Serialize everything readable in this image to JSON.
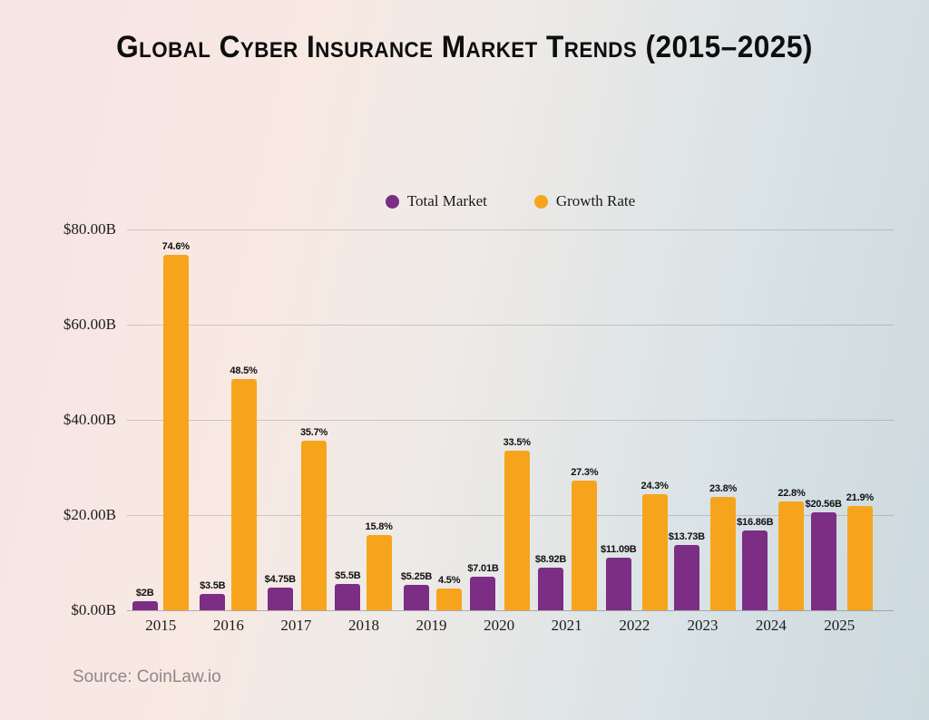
{
  "title": "Global Cyber Insurance Market Trends (2015–2025)",
  "source": "Source: CoinLaw.io",
  "legend": [
    {
      "label": "Total Market",
      "color": "#7B2E83"
    },
    {
      "label": "Growth Rate",
      "color": "#F7A41D"
    }
  ],
  "chart_data": {
    "type": "bar",
    "title": "Global Cyber Insurance Market Trends (2015–2025)",
    "categories": [
      "2015",
      "2016",
      "2017",
      "2018",
      "2019",
      "2020",
      "2021",
      "2022",
      "2023",
      "2024",
      "2025"
    ],
    "series": [
      {
        "name": "Total Market",
        "color": "#7B2E83",
        "values": [
          2,
          3.5,
          4.75,
          5.5,
          5.25,
          7.01,
          8.92,
          11.09,
          13.73,
          16.86,
          20.56
        ],
        "labels": [
          "$2B",
          "$3.5B",
          "$4.75B",
          "$5.5B",
          "$5.25B",
          "$7.01B",
          "$8.92B",
          "$11.09B",
          "$13.73B",
          "$16.86B",
          "$20.56B"
        ]
      },
      {
        "name": "Growth Rate",
        "color": "#F7A41D",
        "values": [
          74.6,
          48.5,
          35.7,
          15.8,
          4.5,
          33.5,
          27.3,
          24.3,
          23.8,
          22.8,
          21.9
        ],
        "labels": [
          "74.6%",
          "48.5%",
          "35.7%",
          "15.8%",
          "4.5%",
          "33.5%",
          "27.3%",
          "24.3%",
          "23.8%",
          "22.8%",
          "21.9%"
        ]
      }
    ],
    "y_axis": {
      "min": 0,
      "max": 80,
      "ticks": [
        {
          "value": 80,
          "label": "$80.00B"
        },
        {
          "value": 60,
          "label": "$60.00B"
        },
        {
          "value": 40,
          "label": "$40.00B"
        },
        {
          "value": 20,
          "label": "$20.00B"
        },
        {
          "value": 0,
          "label": "$0.00B"
        }
      ]
    },
    "grid": true,
    "legend_position": "top"
  }
}
